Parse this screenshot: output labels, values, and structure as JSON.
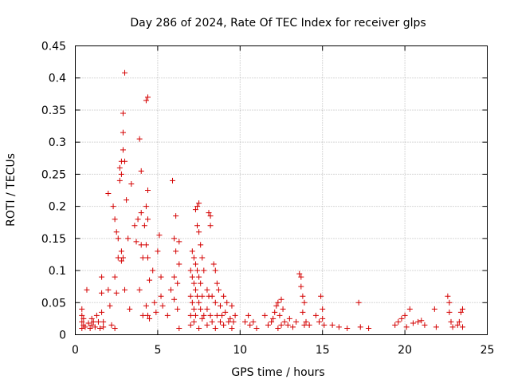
{
  "chart_data": {
    "type": "scatter",
    "title": "Day 286 of 2024, Rate Of TEC Index for receiver glps",
    "xlabel": "GPS time / hours",
    "ylabel": "ROTI / TECUs",
    "xlim": [
      0,
      25
    ],
    "ylim": [
      0,
      0.45
    ],
    "grid": true,
    "marker": "+",
    "color": "#d40000",
    "xticks": [
      0,
      5,
      10,
      15,
      20,
      25
    ],
    "yticks": [
      0,
      0.05,
      0.1,
      0.15,
      0.2,
      0.25,
      0.3,
      0.35,
      0.4,
      0.45
    ],
    "xtick_labels": [
      "0",
      "5",
      "10",
      "15",
      "20",
      "25"
    ],
    "ytick_labels": [
      "0",
      "0.05",
      "0.1",
      "0.15",
      "0.2",
      "0.25",
      "0.3",
      "0.35",
      "0.4",
      "0.45"
    ],
    "series": [
      {
        "name": "ROTI",
        "points": [
          [
            0.4,
            0.01
          ],
          [
            0.4,
            0.02
          ],
          [
            0.4,
            0.03
          ],
          [
            0.4,
            0.04
          ],
          [
            0.5,
            0.015
          ],
          [
            0.5,
            0.025
          ],
          [
            0.6,
            0.012
          ],
          [
            0.7,
            0.07
          ],
          [
            0.8,
            0.018
          ],
          [
            0.9,
            0.01
          ],
          [
            1.0,
            0.015
          ],
          [
            1.0,
            0.025
          ],
          [
            1.1,
            0.02
          ],
          [
            1.2,
            0.012
          ],
          [
            1.3,
            0.03
          ],
          [
            1.4,
            0.02
          ],
          [
            1.5,
            0.01
          ],
          [
            1.6,
            0.035
          ],
          [
            1.6,
            0.09
          ],
          [
            1.6,
            0.065
          ],
          [
            1.7,
            0.02
          ],
          [
            1.7,
            0.012
          ],
          [
            2.0,
            0.22
          ],
          [
            2.0,
            0.07
          ],
          [
            2.1,
            0.045
          ],
          [
            2.2,
            0.015
          ],
          [
            2.3,
            0.2
          ],
          [
            2.4,
            0.18
          ],
          [
            2.4,
            0.09
          ],
          [
            2.4,
            0.01
          ],
          [
            2.5,
            0.16
          ],
          [
            2.5,
            0.065
          ],
          [
            2.6,
            0.15
          ],
          [
            2.6,
            0.12
          ],
          [
            2.7,
            0.24
          ],
          [
            2.7,
            0.26
          ],
          [
            2.8,
            0.27
          ],
          [
            2.8,
            0.25
          ],
          [
            2.8,
            0.13
          ],
          [
            2.8,
            0.115
          ],
          [
            2.9,
            0.345
          ],
          [
            2.9,
            0.315
          ],
          [
            2.9,
            0.288
          ],
          [
            2.9,
            0.12
          ],
          [
            3.0,
            0.408
          ],
          [
            3.0,
            0.27
          ],
          [
            3.0,
            0.07
          ],
          [
            3.1,
            0.21
          ],
          [
            3.2,
            0.15
          ],
          [
            3.3,
            0.04
          ],
          [
            3.4,
            0.235
          ],
          [
            3.6,
            0.17
          ],
          [
            3.7,
            0.145
          ],
          [
            3.8,
            0.18
          ],
          [
            3.9,
            0.305
          ],
          [
            3.9,
            0.07
          ],
          [
            4.0,
            0.255
          ],
          [
            4.0,
            0.19
          ],
          [
            4.0,
            0.14
          ],
          [
            4.1,
            0.12
          ],
          [
            4.1,
            0.03
          ],
          [
            4.2,
            0.17
          ],
          [
            4.3,
            0.365
          ],
          [
            4.3,
            0.2
          ],
          [
            4.3,
            0.14
          ],
          [
            4.3,
            0.045
          ],
          [
            4.4,
            0.37
          ],
          [
            4.4,
            0.225
          ],
          [
            4.4,
            0.18
          ],
          [
            4.4,
            0.12
          ],
          [
            4.4,
            0.03
          ],
          [
            4.5,
            0.085
          ],
          [
            4.5,
            0.025
          ],
          [
            4.7,
            0.1
          ],
          [
            4.8,
            0.05
          ],
          [
            4.9,
            0.035
          ],
          [
            5.0,
            0.13
          ],
          [
            5.1,
            0.155
          ],
          [
            5.2,
            0.09
          ],
          [
            5.2,
            0.06
          ],
          [
            5.3,
            0.045
          ],
          [
            5.6,
            0.03
          ],
          [
            5.8,
            0.07
          ],
          [
            5.9,
            0.24
          ],
          [
            6.0,
            0.15
          ],
          [
            6.0,
            0.09
          ],
          [
            6.0,
            0.055
          ],
          [
            6.1,
            0.185
          ],
          [
            6.1,
            0.13
          ],
          [
            6.2,
            0.08
          ],
          [
            6.2,
            0.04
          ],
          [
            6.3,
            0.145
          ],
          [
            6.3,
            0.11
          ],
          [
            6.3,
            0.01
          ],
          [
            7.0,
            0.1
          ],
          [
            7.0,
            0.06
          ],
          [
            7.0,
            0.03
          ],
          [
            7.0,
            0.015
          ],
          [
            7.1,
            0.13
          ],
          [
            7.1,
            0.09
          ],
          [
            7.1,
            0.05
          ],
          [
            7.2,
            0.12
          ],
          [
            7.2,
            0.08
          ],
          [
            7.2,
            0.04
          ],
          [
            7.2,
            0.02
          ],
          [
            7.3,
            0.195
          ],
          [
            7.3,
            0.11
          ],
          [
            7.3,
            0.07
          ],
          [
            7.3,
            0.03
          ],
          [
            7.4,
            0.2
          ],
          [
            7.4,
            0.17
          ],
          [
            7.4,
            0.1
          ],
          [
            7.4,
            0.06
          ],
          [
            7.5,
            0.205
          ],
          [
            7.5,
            0.16
          ],
          [
            7.5,
            0.09
          ],
          [
            7.5,
            0.05
          ],
          [
            7.5,
            0.01
          ],
          [
            7.6,
            0.14
          ],
          [
            7.6,
            0.08
          ],
          [
            7.6,
            0.04
          ],
          [
            7.7,
            0.12
          ],
          [
            7.7,
            0.06
          ],
          [
            7.7,
            0.025
          ],
          [
            7.8,
            0.1
          ],
          [
            7.8,
            0.03
          ],
          [
            8.0,
            0.07
          ],
          [
            8.0,
            0.04
          ],
          [
            8.0,
            0.015
          ],
          [
            8.1,
            0.19
          ],
          [
            8.1,
            0.06
          ],
          [
            8.2,
            0.185
          ],
          [
            8.2,
            0.17
          ],
          [
            8.2,
            0.03
          ],
          [
            8.3,
            0.06
          ],
          [
            8.3,
            0.02
          ],
          [
            8.4,
            0.11
          ],
          [
            8.5,
            0.1
          ],
          [
            8.5,
            0.05
          ],
          [
            8.5,
            0.01
          ],
          [
            8.6,
            0.08
          ],
          [
            8.6,
            0.03
          ],
          [
            8.7,
            0.07
          ],
          [
            8.8,
            0.045
          ],
          [
            8.8,
            0.02
          ],
          [
            8.9,
            0.03
          ],
          [
            9.0,
            0.06
          ],
          [
            9.0,
            0.015
          ],
          [
            9.1,
            0.035
          ],
          [
            9.2,
            0.05
          ],
          [
            9.3,
            0.02
          ],
          [
            9.4,
            0.025
          ],
          [
            9.5,
            0.045
          ],
          [
            9.5,
            0.01
          ],
          [
            9.6,
            0.02
          ],
          [
            9.7,
            0.03
          ],
          [
            10.3,
            0.02
          ],
          [
            10.5,
            0.03
          ],
          [
            10.6,
            0.015
          ],
          [
            10.8,
            0.02
          ],
          [
            11.0,
            0.01
          ],
          [
            11.5,
            0.03
          ],
          [
            11.7,
            0.015
          ],
          [
            11.9,
            0.02
          ],
          [
            12.0,
            0.025
          ],
          [
            12.1,
            0.035
          ],
          [
            12.2,
            0.045
          ],
          [
            12.3,
            0.05
          ],
          [
            12.3,
            0.01
          ],
          [
            12.4,
            0.03
          ],
          [
            12.5,
            0.055
          ],
          [
            12.5,
            0.015
          ],
          [
            12.6,
            0.04
          ],
          [
            12.7,
            0.02
          ],
          [
            12.9,
            0.015
          ],
          [
            13.0,
            0.025
          ],
          [
            13.2,
            0.012
          ],
          [
            13.4,
            0.02
          ],
          [
            13.6,
            0.095
          ],
          [
            13.7,
            0.09
          ],
          [
            13.7,
            0.075
          ],
          [
            13.8,
            0.06
          ],
          [
            13.8,
            0.035
          ],
          [
            13.9,
            0.05
          ],
          [
            13.9,
            0.015
          ],
          [
            14.0,
            0.02
          ],
          [
            14.2,
            0.015
          ],
          [
            14.6,
            0.03
          ],
          [
            14.8,
            0.02
          ],
          [
            14.9,
            0.06
          ],
          [
            15.0,
            0.04
          ],
          [
            15.0,
            0.025
          ],
          [
            15.1,
            0.015
          ],
          [
            15.6,
            0.015
          ],
          [
            16.0,
            0.012
          ],
          [
            16.5,
            0.01
          ],
          [
            17.2,
            0.05
          ],
          [
            17.3,
            0.012
          ],
          [
            17.8,
            0.01
          ],
          [
            19.4,
            0.015
          ],
          [
            19.6,
            0.02
          ],
          [
            19.8,
            0.025
          ],
          [
            20.0,
            0.03
          ],
          [
            20.1,
            0.012
          ],
          [
            20.3,
            0.04
          ],
          [
            20.5,
            0.018
          ],
          [
            20.8,
            0.02
          ],
          [
            21.0,
            0.022
          ],
          [
            21.2,
            0.015
          ],
          [
            21.8,
            0.04
          ],
          [
            21.9,
            0.012
          ],
          [
            22.6,
            0.06
          ],
          [
            22.7,
            0.05
          ],
          [
            22.7,
            0.035
          ],
          [
            22.8,
            0.02
          ],
          [
            22.9,
            0.012
          ],
          [
            23.2,
            0.015
          ],
          [
            23.3,
            0.02
          ],
          [
            23.4,
            0.035
          ],
          [
            23.5,
            0.04
          ],
          [
            23.5,
            0.012
          ]
        ]
      }
    ]
  }
}
